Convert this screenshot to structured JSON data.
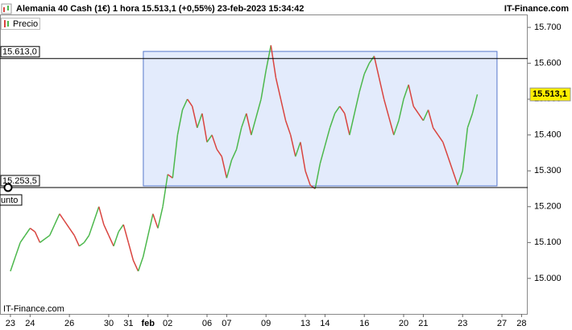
{
  "chart_data": {
    "type": "line",
    "title": "Alemania 40 Cash (1€) 1 hora 15.513,1 (+0,55%) 23-feb-2023 15:34:42",
    "brand": "IT-Finance.com",
    "watermark": "IT-Finance.com",
    "legend": "Precio",
    "side_label": "unto",
    "up_color": "#4cb84c",
    "down_color": "#d9443f",
    "x": [
      0,
      0.25,
      0.5,
      0.75,
      1,
      1.25,
      1.5,
      1.75,
      2,
      2.25,
      2.5,
      2.75,
      3,
      3.25,
      3.5,
      3.75,
      4,
      4.25,
      4.5,
      4.75,
      5,
      5.25,
      5.5,
      5.75,
      6,
      6.25,
      6.5,
      6.75,
      7,
      7.25,
      7.5,
      7.75,
      8,
      8.25,
      8.5,
      8.75,
      9,
      9.25,
      9.5,
      9.75,
      10,
      10.25,
      10.5,
      10.75,
      11,
      11.25,
      11.5,
      11.75,
      12,
      12.25,
      12.5,
      12.75,
      13,
      13.25,
      13.5,
      13.75,
      14,
      14.25,
      14.5,
      14.75,
      15,
      15.25,
      15.5,
      15.75,
      16,
      16.25,
      16.5,
      16.75,
      17,
      17.25,
      17.5,
      17.75,
      18,
      18.25,
      18.5,
      18.75,
      19,
      19.25,
      19.5,
      19.75,
      20,
      20.25,
      20.5,
      20.75,
      21,
      21.25,
      21.5,
      21.75,
      22,
      22.25,
      22.5,
      22.75,
      23,
      23.25,
      23.5,
      23.75
    ],
    "series": [
      {
        "name": "Precio",
        "values": [
          15020,
          15060,
          15100,
          15120,
          15140,
          15130,
          15100,
          15110,
          15120,
          15150,
          15180,
          15160,
          15140,
          15120,
          15090,
          15100,
          15120,
          15160,
          15200,
          15150,
          15120,
          15090,
          15130,
          15150,
          15100,
          15050,
          15020,
          15060,
          15120,
          15180,
          15140,
          15200,
          15290,
          15280,
          15400,
          15470,
          15500,
          15480,
          15420,
          15460,
          15380,
          15400,
          15360,
          15340,
          15280,
          15330,
          15360,
          15420,
          15460,
          15400,
          15450,
          15500,
          15580,
          15650,
          15560,
          15500,
          15440,
          15400,
          15340,
          15380,
          15300,
          15260,
          15250,
          15320,
          15370,
          15420,
          15460,
          15480,
          15460,
          15400,
          15460,
          15520,
          15570,
          15600,
          15620,
          15560,
          15500,
          15450,
          15400,
          15440,
          15500,
          15540,
          15480,
          15460,
          15440,
          15470,
          15420,
          15400,
          15380,
          15340,
          15300,
          15260,
          15300,
          15420,
          15460,
          15513.1
        ]
      }
    ],
    "xlim": [
      -0.53,
      26.31
    ],
    "xticks": [
      {
        "value": 0,
        "label": "23"
      },
      {
        "value": 1,
        "label": "24"
      },
      {
        "value": 3,
        "label": "26"
      },
      {
        "value": 5,
        "label": "30"
      },
      {
        "value": 6,
        "label": "31"
      },
      {
        "value": 7,
        "label": "feb"
      },
      {
        "value": 8,
        "label": "02"
      },
      {
        "value": 10,
        "label": "06"
      },
      {
        "value": 11,
        "label": "07"
      },
      {
        "value": 13,
        "label": "09"
      },
      {
        "value": 15,
        "label": "13"
      },
      {
        "value": 16,
        "label": "14"
      },
      {
        "value": 18,
        "label": "16"
      },
      {
        "value": 20,
        "label": "20"
      },
      {
        "value": 21,
        "label": "21"
      },
      {
        "value": 23,
        "label": "23"
      },
      {
        "value": 25,
        "label": "27"
      },
      {
        "value": 26,
        "label": "28"
      }
    ],
    "ylim": [
      14901,
      15736
    ],
    "yticks": [
      {
        "value": 15000,
        "label": "15.000"
      },
      {
        "value": 15100,
        "label": "15.100"
      },
      {
        "value": 15200,
        "label": "15.200"
      },
      {
        "value": 15300,
        "label": "15.300"
      },
      {
        "value": 15400,
        "label": "15.400"
      },
      {
        "value": 15500,
        "label": "15.500"
      },
      {
        "value": 15600,
        "label": "15.600"
      },
      {
        "value": 15700,
        "label": "15.700"
      }
    ],
    "hlines": [
      {
        "value": 15613.0,
        "label": "15.613,0"
      },
      {
        "value": 15253.5,
        "label": "15.253,5"
      }
    ],
    "rect": {
      "x": [
        6.76,
        24.75
      ],
      "y": [
        15258,
        15633
      ]
    },
    "last_price": {
      "value": 15513.1,
      "label": "15.513,1"
    }
  }
}
